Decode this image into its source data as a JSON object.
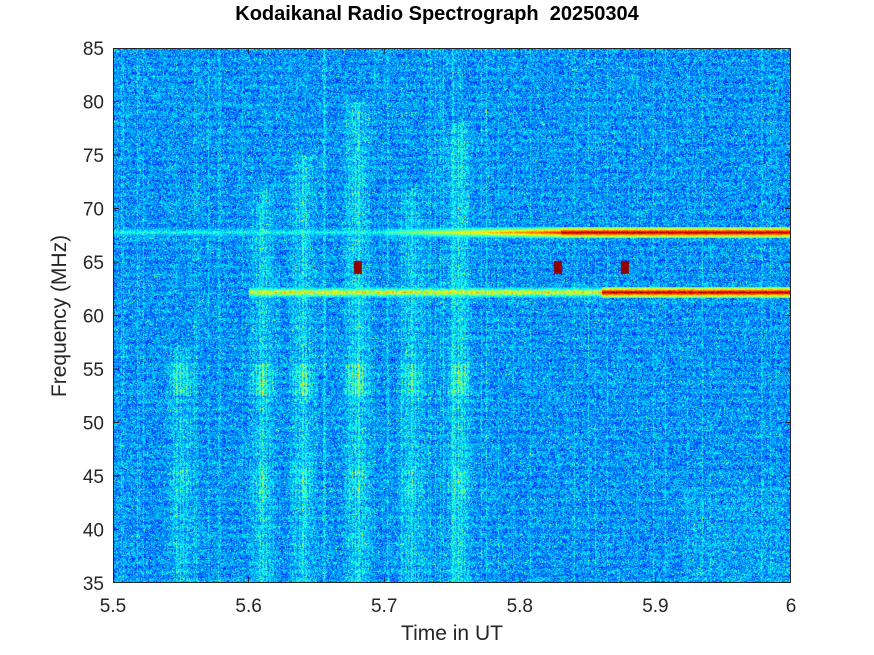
{
  "chart_data": {
    "type": "heatmap",
    "title": "Kodaikanal Radio Spectrograph  20250304",
    "xlabel": "Time in UT",
    "ylabel": "Frequency (MHz)",
    "xlim": [
      5.5,
      6.0
    ],
    "ylim": [
      35,
      85
    ],
    "xticks": [
      5.5,
      5.6,
      5.7,
      5.8,
      5.9,
      6.0
    ],
    "xtick_labels": [
      "5.5",
      "5.6",
      "5.7",
      "5.8",
      "5.9",
      "6"
    ],
    "yticks": [
      35,
      40,
      45,
      50,
      55,
      60,
      65,
      70,
      75,
      80,
      85
    ],
    "colormap": "jet",
    "background_intensity": 0.25,
    "emission_lanes": [
      {
        "freq_mhz": 67.8,
        "t_start": 5.5,
        "t_end": 6.0,
        "intensity_start": 0.4,
        "intensity_end": 1.0,
        "note": "brightening after 5.70 UT, saturated from 5.83 UT"
      },
      {
        "freq_mhz": 62.2,
        "t_start": 5.6,
        "t_end": 6.0,
        "intensity_start": 0.55,
        "intensity_end": 1.0,
        "note": "saturated from 5.86 UT"
      }
    ],
    "broadband_bursts": [
      {
        "t": 5.55,
        "freq_range": [
          35,
          57
        ],
        "intensity": 0.45
      },
      {
        "t": 5.61,
        "freq_range": [
          35,
          72
        ],
        "intensity": 0.5
      },
      {
        "t": 5.64,
        "freq_range": [
          35,
          75
        ],
        "intensity": 0.55
      },
      {
        "t": 5.68,
        "freq_range": [
          35,
          80
        ],
        "intensity": 0.65
      },
      {
        "t": 5.72,
        "freq_range": [
          35,
          72
        ],
        "intensity": 0.5
      },
      {
        "t": 5.755,
        "freq_range": [
          35,
          78
        ],
        "intensity": 0.55
      }
    ],
    "spots": [
      {
        "t": 5.68,
        "freq_mhz": 64.5,
        "intensity": 1.0
      },
      {
        "t": 5.828,
        "freq_mhz": 64.5,
        "intensity": 1.0
      },
      {
        "t": 5.877,
        "freq_mhz": 64.5,
        "intensity": 1.0
      }
    ]
  }
}
